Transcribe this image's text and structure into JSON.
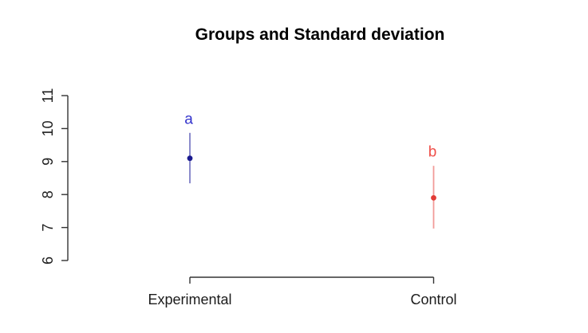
{
  "chart_data": {
    "type": "scatter",
    "title": "Groups and Standard deviation",
    "xlabel": "",
    "ylabel": "",
    "categories": [
      "Experimental",
      "Control"
    ],
    "ylim": [
      6,
      11
    ],
    "yticks": [
      6,
      7,
      8,
      9,
      10,
      11
    ],
    "grid": false,
    "legend": false,
    "error_bars": "standard deviation",
    "series": [
      {
        "name": "Experimental",
        "mean": 9.1,
        "sd": 0.76,
        "lower": 8.34,
        "upper": 9.87,
        "sig_letter": "a",
        "point_color": "#1a1a8f",
        "line_color": "#7f7fc6",
        "letter_color": "#3333cc"
      },
      {
        "name": "Control",
        "mean": 7.9,
        "sd": 0.95,
        "lower": 6.97,
        "upper": 8.87,
        "sig_letter": "b",
        "point_color": "#e23b35",
        "line_color": "#f29b98",
        "letter_color": "#ef4f4a"
      }
    ],
    "axis_color": "#333333",
    "text_color": "#000000",
    "background_color": "#ffffff"
  }
}
